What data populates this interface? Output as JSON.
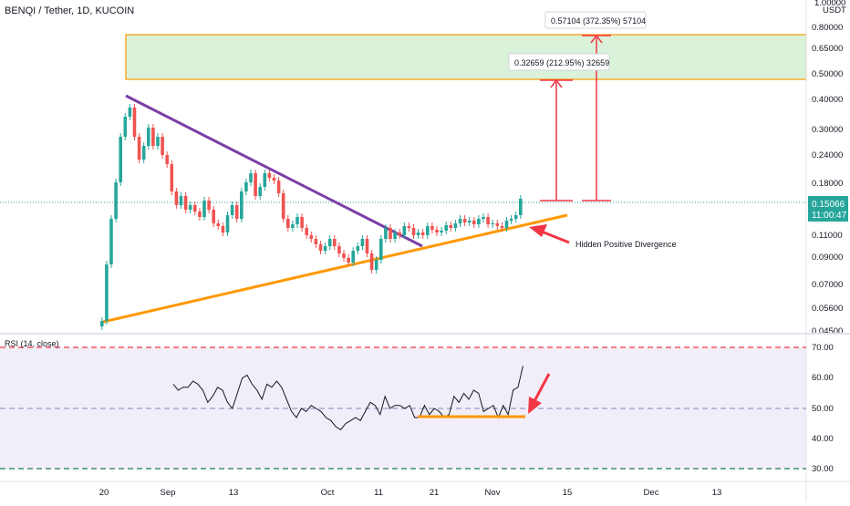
{
  "chart_data": {
    "type": "candlestick",
    "title": "BENQI / Tether, 1D, KUCOIN",
    "price_axis": {
      "unit": "USDT",
      "ticks": [
        "1.00000",
        "0.80000",
        "0.65000",
        "0.50000",
        "0.40000",
        "0.30000",
        "0.24000",
        "0.18000",
        "0.11000",
        "0.09000",
        "0.07000",
        "0.05600",
        "0.04500"
      ],
      "scale": "log"
    },
    "last_price": {
      "value": "0.15066",
      "countdown": "11:00:47",
      "color": "#26a69a"
    },
    "date_ticks": [
      "20",
      "Sep",
      "13",
      "Oct",
      "11",
      "21",
      "Nov",
      "15",
      "Dec",
      "13"
    ],
    "annotations": {
      "target_1": "0.32659 (212.95%) 32659",
      "target_2": "0.57104 (372.35%) 57104",
      "divergence": "Hidden Positive Divergence"
    },
    "colors": {
      "up": "#26a69a",
      "down": "#ef5350",
      "trend_top": "#7b3fa6",
      "trend_bottom": "#ff9800",
      "target_zone": "#d9f2d9",
      "target_border": "#ff9800",
      "arrow": "#f23645"
    },
    "rsi": {
      "label": "RSI (14, close)",
      "ticks": [
        "70.00",
        "60.00",
        "50.00",
        "40.00",
        "30.00"
      ],
      "levels": {
        "upper": 70,
        "middle": 50,
        "lower": 30
      },
      "values": [
        58,
        56,
        57,
        57,
        59,
        58,
        56,
        52,
        54,
        57,
        56,
        52,
        50,
        55,
        60,
        61,
        58,
        56,
        53,
        58,
        57,
        59,
        57,
        53,
        49,
        47,
        50,
        49,
        51,
        50,
        49,
        47,
        46,
        44,
        43,
        45,
        46,
        47,
        46,
        49,
        52,
        51,
        48,
        54,
        50,
        51,
        51,
        50,
        51,
        47,
        47,
        51,
        48,
        50,
        49,
        47,
        48,
        54,
        52,
        55,
        53,
        56,
        55,
        49,
        50,
        51,
        47,
        51,
        48,
        56,
        57,
        64
      ]
    }
  }
}
